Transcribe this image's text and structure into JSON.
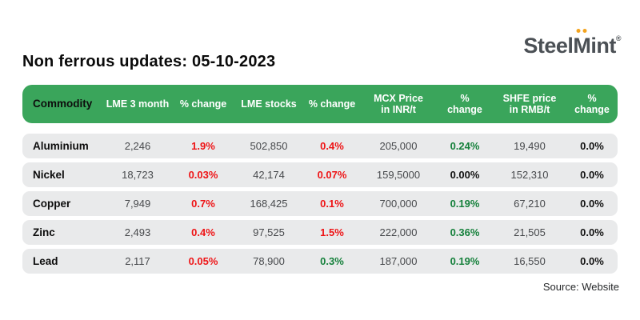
{
  "page": {
    "title": "Non ferrous updates: 05-10-2023",
    "source": "Source: Website"
  },
  "logo": {
    "steel": "Steel",
    "m": "M",
    "int": "int",
    "registered": "®"
  },
  "colors": {
    "header_green": "#3aa55b",
    "row_gray": "#e9eaeb",
    "negative_red": "#ee1416",
    "positive_green": "#15803b",
    "neutral_black": "#121212",
    "logo_gray": "#4b5055",
    "logo_dot_orange": "#f4a41f"
  },
  "table": {
    "columns": [
      {
        "lines": [
          "Commodity"
        ]
      },
      {
        "lines": [
          "LME 3 month"
        ]
      },
      {
        "lines": [
          "% change"
        ]
      },
      {
        "lines": [
          "LME stocks"
        ]
      },
      {
        "lines": [
          "% change"
        ]
      },
      {
        "lines": [
          "MCX Price",
          "in INR/t"
        ]
      },
      {
        "lines": [
          "%",
          "change"
        ]
      },
      {
        "lines": [
          "SHFE price",
          "in RMB/t"
        ]
      },
      {
        "lines": [
          "%",
          "change"
        ]
      }
    ],
    "rows": [
      {
        "cells": [
          {
            "t": "Aluminium",
            "k": "name"
          },
          {
            "t": "2,246",
            "k": "num"
          },
          {
            "t": "1.9%",
            "k": "red"
          },
          {
            "t": "502,850",
            "k": "num"
          },
          {
            "t": "0.4%",
            "k": "red"
          },
          {
            "t": "205,000",
            "k": "num"
          },
          {
            "t": "0.24%",
            "k": "green"
          },
          {
            "t": "19,490",
            "k": "num"
          },
          {
            "t": "0.0%",
            "k": "dark"
          }
        ]
      },
      {
        "cells": [
          {
            "t": "Nickel",
            "k": "name"
          },
          {
            "t": "18,723",
            "k": "num"
          },
          {
            "t": "0.03%",
            "k": "red"
          },
          {
            "t": "42,174",
            "k": "num"
          },
          {
            "t": "0.07%",
            "k": "red"
          },
          {
            "t": "159,5000",
            "k": "num"
          },
          {
            "t": "0.00%",
            "k": "dark"
          },
          {
            "t": "152,310",
            "k": "num"
          },
          {
            "t": "0.0%",
            "k": "dark"
          }
        ]
      },
      {
        "cells": [
          {
            "t": "Copper",
            "k": "name"
          },
          {
            "t": "7,949",
            "k": "num"
          },
          {
            "t": "0.7%",
            "k": "red"
          },
          {
            "t": "168,425",
            "k": "num"
          },
          {
            "t": "0.1%",
            "k": "red"
          },
          {
            "t": "700,000",
            "k": "num"
          },
          {
            "t": "0.19%",
            "k": "green"
          },
          {
            "t": "67,210",
            "k": "num"
          },
          {
            "t": "0.0%",
            "k": "dark"
          }
        ]
      },
      {
        "cells": [
          {
            "t": "Zinc",
            "k": "name"
          },
          {
            "t": "2,493",
            "k": "num"
          },
          {
            "t": "0.4%",
            "k": "red"
          },
          {
            "t": "97,525",
            "k": "num"
          },
          {
            "t": "1.5%",
            "k": "red"
          },
          {
            "t": "222,000",
            "k": "num"
          },
          {
            "t": "0.36%",
            "k": "green"
          },
          {
            "t": "21,505",
            "k": "num"
          },
          {
            "t": "0.0%",
            "k": "dark"
          }
        ]
      },
      {
        "cells": [
          {
            "t": "Lead",
            "k": "name"
          },
          {
            "t": "2,117",
            "k": "num"
          },
          {
            "t": "0.05%",
            "k": "red"
          },
          {
            "t": "78,900",
            "k": "num"
          },
          {
            "t": "0.3%",
            "k": "green"
          },
          {
            "t": "187,000",
            "k": "num"
          },
          {
            "t": "0.19%",
            "k": "green"
          },
          {
            "t": "16,550",
            "k": "num"
          },
          {
            "t": "0.0%",
            "k": "dark"
          }
        ]
      }
    ]
  },
  "chart_data": {
    "type": "table",
    "title": "Non ferrous updates: 05-10-2023",
    "columns": [
      "Commodity",
      "LME 3 month",
      "% change",
      "LME stocks",
      "% change",
      "MCX Price in INR/t",
      "% change",
      "SHFE price in RMB/t",
      "% change"
    ],
    "rows": [
      [
        "Aluminium",
        "2,246",
        "1.9%",
        "502,850",
        "0.4%",
        "205,000",
        "0.24%",
        "19,490",
        "0.0%"
      ],
      [
        "Nickel",
        "18,723",
        "0.03%",
        "42,174",
        "0.07%",
        "159,5000",
        "0.00%",
        "152,310",
        "0.0%"
      ],
      [
        "Copper",
        "7,949",
        "0.7%",
        "168,425",
        "0.1%",
        "700,000",
        "0.19%",
        "67,210",
        "0.0%"
      ],
      [
        "Zinc",
        "2,493",
        "0.4%",
        "97,525",
        "1.5%",
        "222,000",
        "0.36%",
        "21,505",
        "0.0%"
      ],
      [
        "Lead",
        "2,117",
        "0.05%",
        "78,900",
        "0.3%",
        "187,000",
        "0.19%",
        "16,550",
        "0.0%"
      ]
    ],
    "source": "Source: Website"
  }
}
